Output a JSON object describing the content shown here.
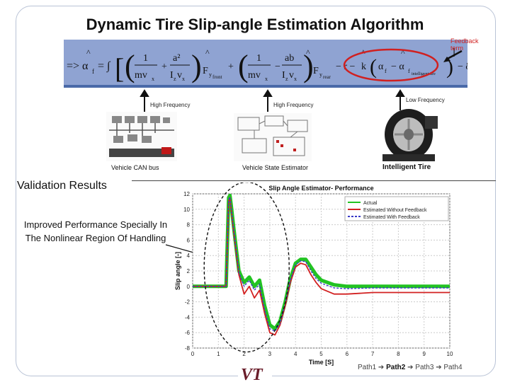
{
  "title": "Dynamic Tire Slip-angle Estimation Algorithm",
  "feedback_label": "Feedback\nterm",
  "arrows": {
    "left": "High Frequency",
    "middle": "High Frequency",
    "right": "Low Frequency"
  },
  "captions": {
    "can": "Vehicle CAN bus",
    "estimator": "Vehicle State Estimator",
    "tire": "Intelligent Tire"
  },
  "section_title": "Validation Results",
  "improved_text": "Improved Performance Specially In The Nonlinear Region Of Handling",
  "paths": {
    "p1": "Path1",
    "p2": "Path2",
    "p3": "Path3",
    "p4": "Path4",
    "arrow": "➔"
  },
  "logo": "VT",
  "chart_data": {
    "type": "line",
    "title": "Slip Angle Estimator- Performance",
    "xlabel": "Time [S]",
    "ylabel": "Slip angle [-]",
    "xlim": [
      0,
      10
    ],
    "ylim": [
      -8,
      12
    ],
    "xticks": [
      0,
      1,
      2,
      3,
      4,
      5,
      6,
      7,
      8,
      9,
      10
    ],
    "yticks": [
      -8,
      -6,
      -4,
      -2,
      0,
      2,
      4,
      6,
      8,
      10,
      12
    ],
    "grid": true,
    "legend_position": "top-right",
    "x": [
      0,
      0.5,
      1.0,
      1.2,
      1.3,
      1.4,
      1.45,
      1.5,
      1.6,
      1.8,
      2.0,
      2.2,
      2.4,
      2.6,
      2.8,
      3.0,
      3.2,
      3.4,
      3.6,
      3.8,
      4.0,
      4.2,
      4.4,
      4.6,
      4.8,
      5.0,
      5.5,
      6.0,
      7.0,
      8.0,
      9.0,
      10.0
    ],
    "series": [
      {
        "name": "Actual",
        "color": "#22c322",
        "values": [
          0,
          0,
          0,
          0,
          0,
          11.5,
          11.8,
          10.5,
          7.5,
          2.0,
          0.5,
          1.2,
          0.0,
          0.8,
          -2.5,
          -5.0,
          -5.5,
          -4.5,
          -2.0,
          1.0,
          3.0,
          3.5,
          3.5,
          2.5,
          1.5,
          0.8,
          0.2,
          0.0,
          0.0,
          0.0,
          0.0,
          0.0
        ]
      },
      {
        "name": "Estimated Without Feedback",
        "color": "#d22020",
        "values": [
          0,
          0,
          0,
          0,
          0,
          11.0,
          11.5,
          10.0,
          7.0,
          1.5,
          -1.0,
          0.0,
          -1.5,
          -0.5,
          -3.5,
          -6.0,
          -6.3,
          -5.0,
          -2.5,
          0.5,
          2.5,
          3.0,
          2.8,
          1.5,
          0.5,
          -0.3,
          -1.0,
          -1.0,
          -0.8,
          -0.8,
          -0.8,
          -0.8
        ]
      },
      {
        "name": "Estimated With Feedback",
        "color": "#3a3ac8",
        "values": [
          0,
          0,
          0,
          0,
          0,
          11.2,
          11.6,
          10.2,
          7.2,
          1.8,
          0.0,
          0.8,
          -0.5,
          0.3,
          -3.0,
          -5.5,
          -5.8,
          -4.8,
          -2.2,
          0.8,
          2.8,
          3.3,
          3.2,
          2.0,
          1.0,
          0.4,
          -0.2,
          -0.3,
          -0.2,
          -0.2,
          -0.2,
          -0.2
        ]
      }
    ]
  }
}
